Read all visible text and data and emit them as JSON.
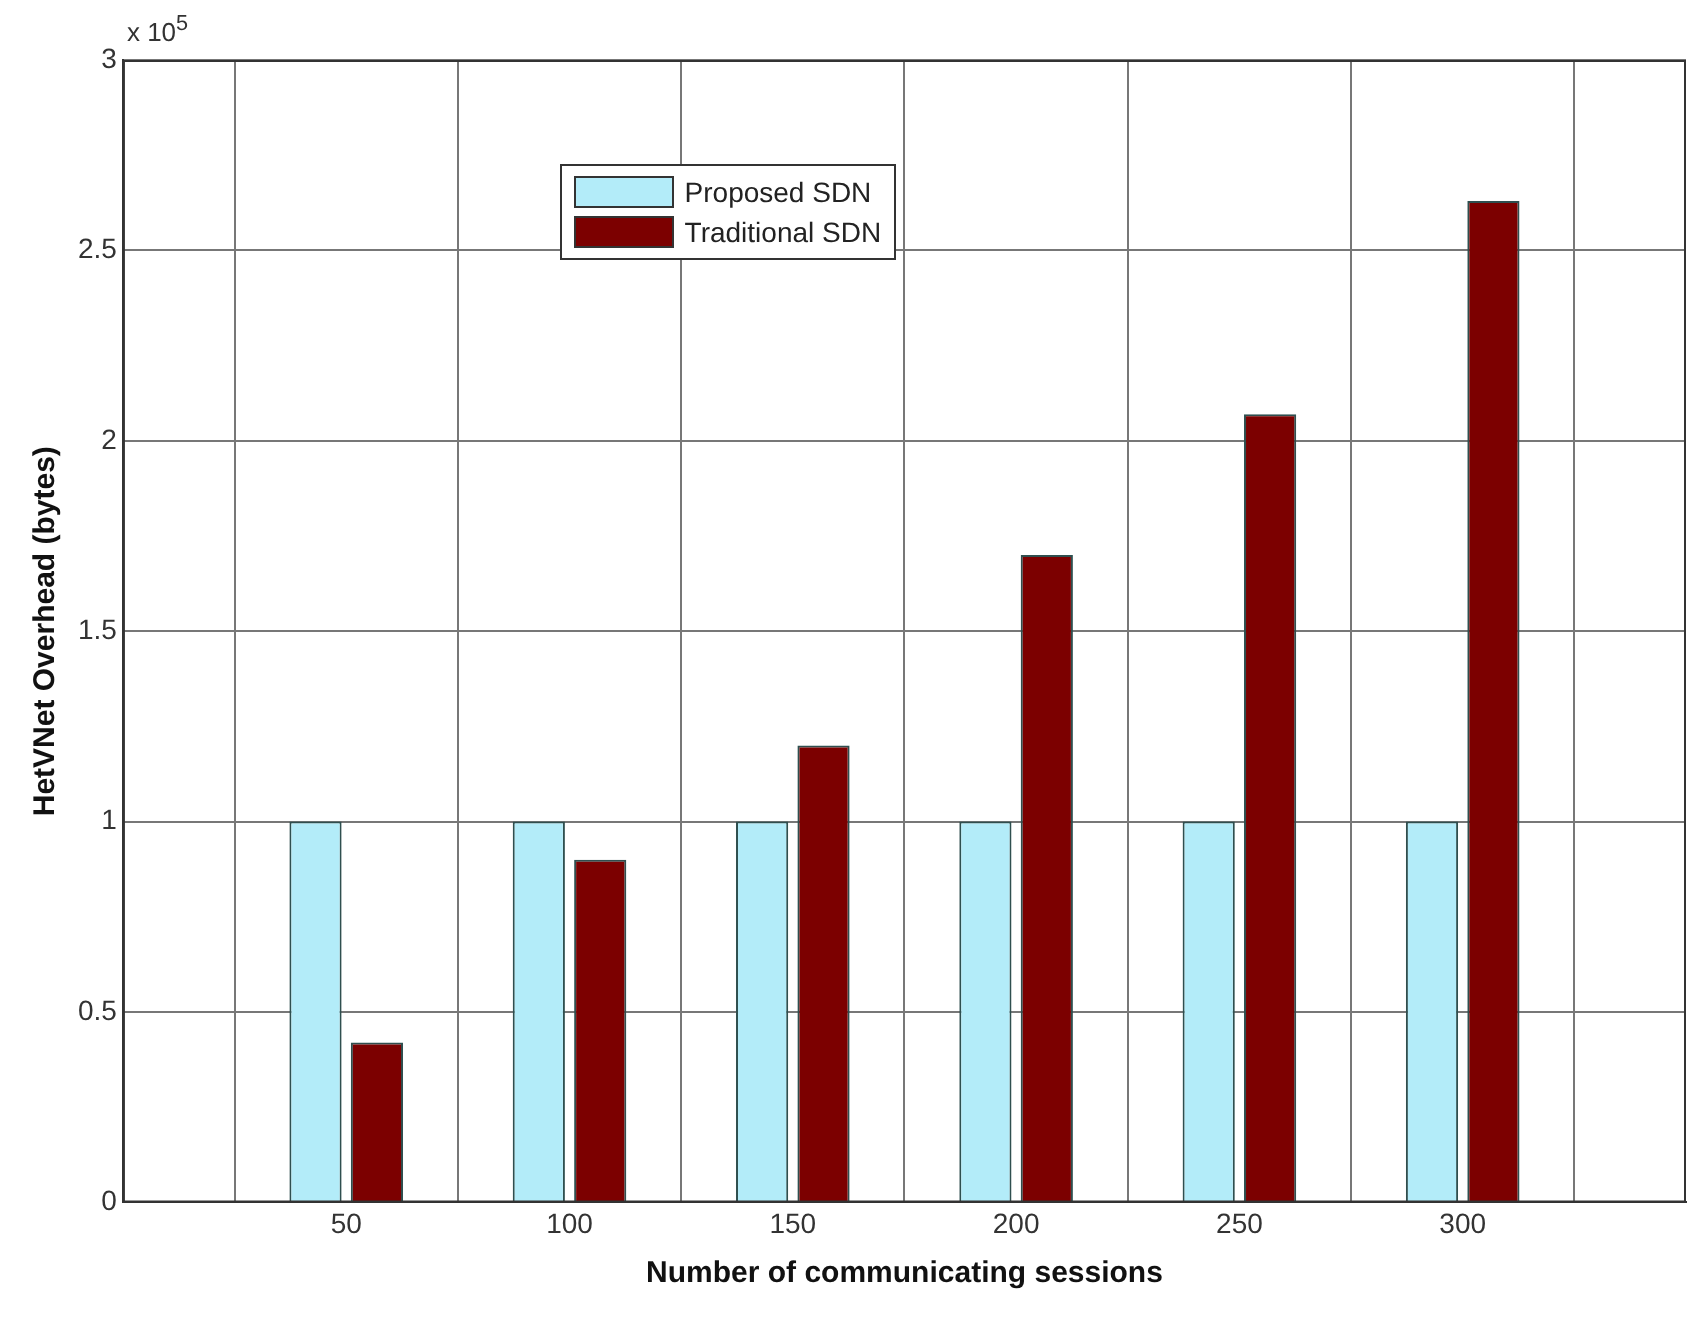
{
  "chart_data": {
    "type": "bar",
    "xlabel": "Number of communicating sessions",
    "ylabel": "HetVNet Overhead (bytes)",
    "x": [
      50,
      100,
      150,
      200,
      250,
      300
    ],
    "xlim": [
      0,
      350
    ],
    "xticks": [
      50,
      100,
      150,
      200,
      250,
      300
    ],
    "ylim": [
      0,
      3
    ],
    "yticks": [
      0,
      0.5,
      1,
      1.5,
      2,
      2.5,
      3
    ],
    "series": [
      {
        "name": "Proposed SDN",
        "color": "#b3ecf9",
        "values": [
          1,
          1,
          1,
          1,
          1,
          1
        ]
      },
      {
        "name": "Traditional SDN",
        "color": "#7c0000",
        "values": [
          0.42,
          0.9,
          1.2,
          1.7,
          2.07,
          2.63
        ]
      }
    ],
    "annotations": [
      "x 10$^{5}$"
    ],
    "grid": true,
    "legend": "top"
  }
}
